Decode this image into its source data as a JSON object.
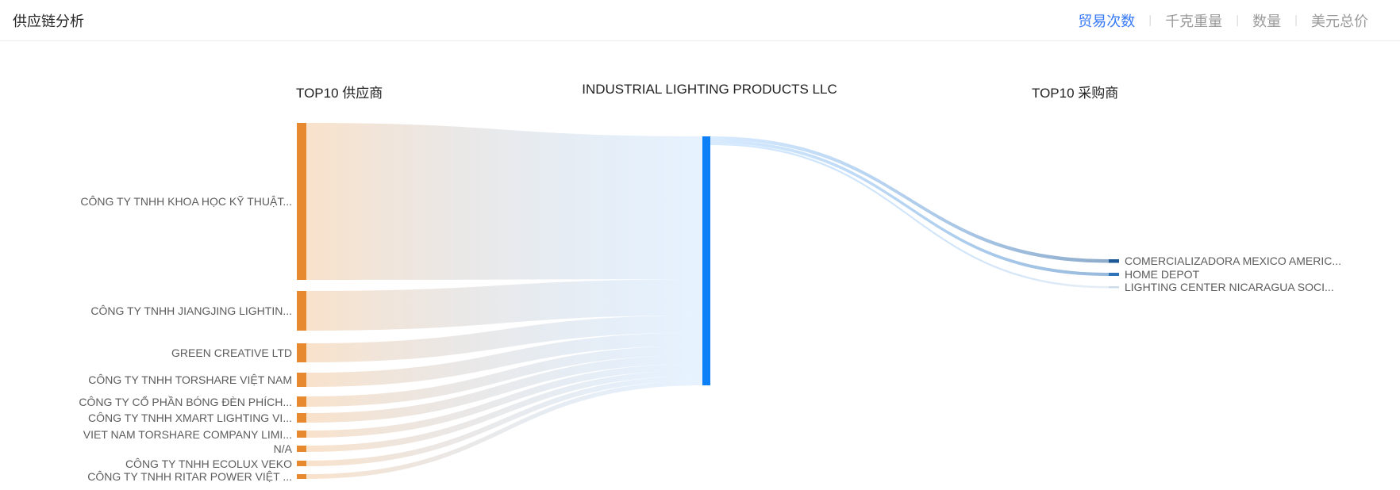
{
  "page": {
    "title": "供应链分析",
    "tab_separator": "|"
  },
  "metric_tabs": [
    {
      "label": "贸易次数",
      "active": true
    },
    {
      "label": "千克重量",
      "active": false
    },
    {
      "label": "数量",
      "active": false
    },
    {
      "label": "美元总价",
      "active": false
    }
  ],
  "chart_data": {
    "type": "sankey",
    "active_metric": "贸易次数",
    "columns": {
      "left": "TOP10 供应商",
      "right": "TOP10 采购商"
    },
    "center_company": "INDUSTRIAL LIGHTING PRODUCTS LLC",
    "suppliers": [
      {
        "name": "CÔNG TY TNHH KHOA HỌC KỸ THUẬT...",
        "weight": 198
      },
      {
        "name": "CÔNG TY TNHH JIANGJING LIGHTIN...",
        "weight": 50
      },
      {
        "name": "GREEN CREATIVE LTD",
        "weight": 24
      },
      {
        "name": "CÔNG TY TNHH TORSHARE VIỆT NAM",
        "weight": 18
      },
      {
        "name": "CÔNG TY CỔ PHẦN BÓNG ĐÈN PHÍCH...",
        "weight": 13
      },
      {
        "name": "CÔNG TY TNHH XMART LIGHTING VI...",
        "weight": 12
      },
      {
        "name": "VIET NAM TORSHARE COMPANY LIMI...",
        "weight": 9
      },
      {
        "name": "N/A",
        "weight": 8
      },
      {
        "name": "CÔNG TY TNHH ECOLUX VEKO",
        "weight": 7
      },
      {
        "name": "CÔNG TY TNHH RITAR POWER VIỆT ...",
        "weight": 6
      }
    ],
    "buyers": [
      {
        "name": "COMERCIALIZADORA MEXICO AMERIC...",
        "weight": 4.5,
        "color": "#1d5795"
      },
      {
        "name": "HOME DEPOT",
        "weight": 4,
        "color": "#2f74b8"
      },
      {
        "name": "LIGHTING CENTER NICARAGUA SOCI...",
        "weight": 2.5,
        "color": "#ccdceb"
      }
    ],
    "colors": {
      "supplier_node": "#e78a2f",
      "company_node": "#0e80f7",
      "tab_active": "#3578f6",
      "tab_inactive": "#9a9a9a",
      "flow_left_from": "rgba(231,138,47,0.25)",
      "flow_left_to": "rgba(14,128,247,0.10)",
      "flow_right_from": "rgba(14,128,247,0.16)"
    }
  }
}
